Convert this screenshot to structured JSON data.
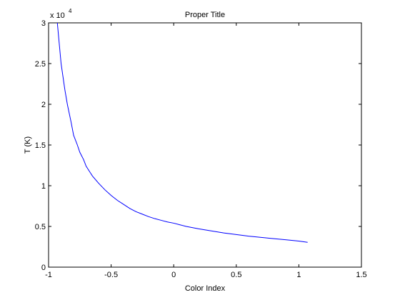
{
  "chart_data": {
    "type": "line",
    "title": "Proper Title",
    "xlabel": "Color Index",
    "ylabel": "T (K)",
    "xlim": [
      -1,
      1.5
    ],
    "ylim": [
      0,
      30000
    ],
    "xticks": [
      -1,
      -0.5,
      0,
      0.5,
      1,
      1.5
    ],
    "xtick_labels": [
      "-1",
      "-0.5",
      "0",
      "0.5",
      "1",
      "1.5"
    ],
    "yticks": [
      0,
      5000,
      10000,
      15000,
      20000,
      25000,
      30000
    ],
    "ytick_labels": [
      "0",
      "0.5",
      "1",
      "1.5",
      "2",
      "2.5",
      "3"
    ],
    "y_exponent_base": "x 10",
    "y_exponent_power": "4",
    "grid": false,
    "line_color": "#0000ff",
    "series": [
      {
        "x": [
          -0.93,
          -0.9,
          -0.87,
          -0.85,
          -0.82,
          -0.8,
          -0.77,
          -0.75,
          -0.72,
          -0.7,
          -0.65,
          -0.6,
          -0.55,
          -0.5,
          -0.45,
          -0.4,
          -0.35,
          -0.3,
          -0.25,
          -0.2,
          -0.15,
          -0.1,
          -0.05,
          0,
          0.05,
          0.1,
          0.2,
          0.3,
          0.4,
          0.5,
          0.6,
          0.7,
          0.8,
          0.9,
          1.0,
          1.07
        ],
        "y": [
          30000,
          25000,
          21800,
          20000,
          17800,
          16200,
          15000,
          14100,
          13200,
          12400,
          11200,
          10300,
          9500,
          8800,
          8200,
          7700,
          7200,
          6800,
          6500,
          6200,
          5950,
          5750,
          5550,
          5400,
          5200,
          5000,
          4700,
          4450,
          4200,
          4000,
          3800,
          3650,
          3500,
          3350,
          3200,
          3050
        ]
      }
    ]
  }
}
